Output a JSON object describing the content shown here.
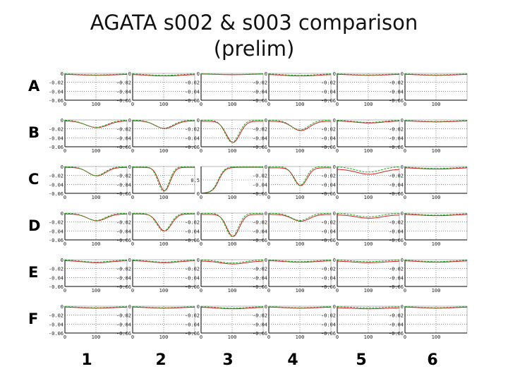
{
  "title": "AGATA s002 & s003 comparison\n(prelim)",
  "rows": [
    "A",
    "B",
    "C",
    "D",
    "E",
    "F"
  ],
  "columns": [
    "1",
    "2",
    "3",
    "4",
    "5",
    "6"
  ],
  "colors": {
    "series_s002": "#d42020",
    "series_s003": "#22a822",
    "axes": "#000000",
    "grid": "#444444",
    "frame": "#888888"
  },
  "chart_data": {
    "type": "line",
    "layout": "small-multiples 6x6",
    "series_names": [],
    "xlim": [
      0,
      200
    ],
    "x_ticks": [
      "0",
      "100"
    ],
    "default_y_ticks": [
      "0",
      "-0.02",
      "-0.04",
      "-0.06"
    ],
    "default_ylim": [
      -0.06,
      0
    ],
    "special_panels": [
      {
        "row": 2,
        "col": 2,
        "ylim": [
          0,
          1
        ],
        "y_ticks": [
          "0.5",
          "0"
        ]
      }
    ],
    "panels": [
      [
        {
          "depth": 0.003,
          "width": 60,
          "offset": 0.0015
        },
        {
          "depth": 0.004,
          "width": 55,
          "offset": 0.002
        },
        {
          "depth": 0.002,
          "width": 60,
          "offset": 0.001
        },
        {
          "depth": 0.004,
          "width": 55,
          "offset": 0.002
        },
        {
          "depth": 0.003,
          "width": 60,
          "offset": 0.0015
        },
        {
          "depth": 0.003,
          "width": 60,
          "offset": 0.0015
        }
      ],
      [
        {
          "depth": 0.016,
          "width": 35,
          "offset": 0.002
        },
        {
          "depth": 0.018,
          "width": 30,
          "offset": 0.002
        },
        {
          "depth": 0.05,
          "width": 22,
          "offset": 0.003
        },
        {
          "depth": 0.022,
          "width": 28,
          "offset": 0.003
        },
        {
          "depth": 0.005,
          "width": 45,
          "offset": 0.002
        },
        {
          "depth": 0.003,
          "width": 60,
          "offset": 0.0015
        }
      ],
      [
        {
          "depth": 0.02,
          "width": 28,
          "offset": 0.002
        },
        {
          "depth": 0.055,
          "width": 18,
          "offset": 0.002
        },
        {
          "depth": 0.0,
          "width": 40,
          "offset": 0.0
        },
        {
          "depth": 0.042,
          "width": 20,
          "offset": 0.003
        },
        {
          "depth": 0.012,
          "width": 40,
          "offset": 0.006
        },
        {
          "depth": 0.004,
          "width": 60,
          "offset": 0.002
        }
      ],
      [
        {
          "depth": 0.016,
          "width": 30,
          "offset": 0.002
        },
        {
          "depth": 0.04,
          "width": 22,
          "offset": 0.002
        },
        {
          "depth": 0.052,
          "width": 20,
          "offset": 0.003
        },
        {
          "depth": 0.016,
          "width": 28,
          "offset": 0.003
        },
        {
          "depth": 0.008,
          "width": 40,
          "offset": 0.004
        },
        {
          "depth": 0.004,
          "width": 60,
          "offset": 0.002
        }
      ],
      [
        {
          "depth": 0.005,
          "width": 45,
          "offset": 0.002
        },
        {
          "depth": 0.005,
          "width": 45,
          "offset": 0.002
        },
        {
          "depth": 0.007,
          "width": 40,
          "offset": 0.003
        },
        {
          "depth": 0.004,
          "width": 50,
          "offset": 0.002
        },
        {
          "depth": 0.004,
          "width": 50,
          "offset": 0.003
        },
        {
          "depth": 0.004,
          "width": 55,
          "offset": 0.002
        }
      ],
      [
        {
          "depth": 0.003,
          "width": 55,
          "offset": 0.0015
        },
        {
          "depth": 0.003,
          "width": 55,
          "offset": 0.0015
        },
        {
          "depth": 0.004,
          "width": 50,
          "offset": 0.002
        },
        {
          "depth": 0.003,
          "width": 55,
          "offset": 0.0015
        },
        {
          "depth": 0.003,
          "width": 55,
          "offset": 0.003
        },
        {
          "depth": 0.003,
          "width": 55,
          "offset": 0.0015
        }
      ]
    ]
  }
}
